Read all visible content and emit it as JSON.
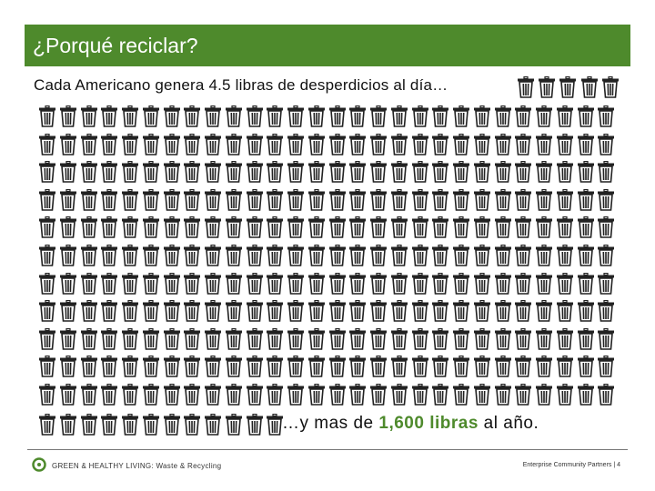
{
  "slide": {
    "title": "¿Porqué reciclar?",
    "subtitle": "Cada Americano genera 4.5 libras de desperdicios al día…",
    "bottom_prefix": "…y mas de ",
    "bottom_highlight": "1,600 libras",
    "bottom_suffix": " al año."
  },
  "footer": {
    "left": "GREEN & HEALTHY LIVING: Waste & Recycling",
    "right": "Enterprise Community Partners | 4"
  },
  "colors": {
    "accent": "#4e8a2c",
    "can": "#222222"
  },
  "icons": {
    "can": "trash-can-icon",
    "logo": "circle-logo-icon"
  }
}
